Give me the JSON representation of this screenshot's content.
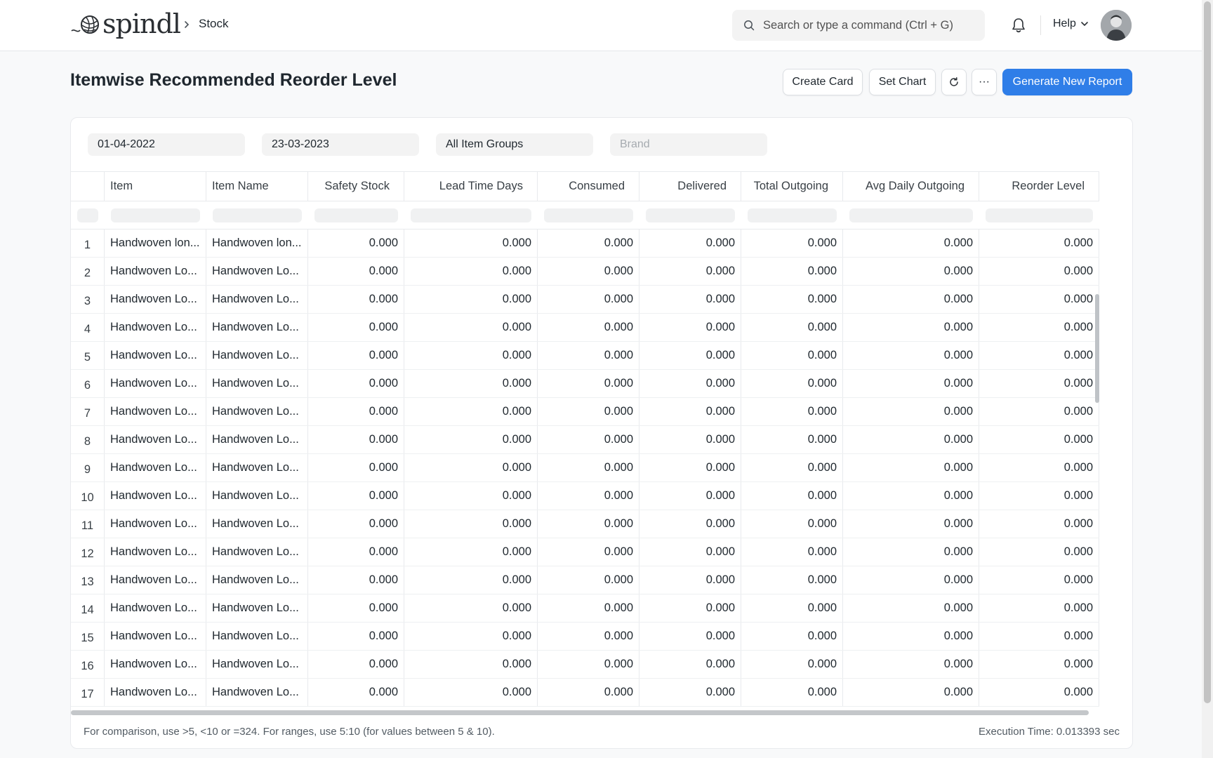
{
  "navbar": {
    "logo_text": "spindl",
    "breadcrumb": "Stock",
    "search_placeholder": "Search or type a command (Ctrl + G)",
    "help_label": "Help"
  },
  "page": {
    "title": "Itemwise Recommended Reorder Level",
    "buttons": {
      "create_card": "Create Card",
      "set_chart": "Set Chart",
      "more": "···",
      "generate_report": "Generate New Report"
    }
  },
  "filters": {
    "from_date": "01-04-2022",
    "to_date": "23-03-2023",
    "item_group": "All Item Groups",
    "brand_placeholder": "Brand"
  },
  "table": {
    "columns": [
      "Item",
      "Item Name",
      "Safety Stock",
      "Lead Time Days",
      "Consumed",
      "Delivered",
      "Total Outgoing",
      "Avg Daily Outgoing",
      "Reorder Level"
    ],
    "rows": [
      {
        "num": "1",
        "item": "Handwoven lon...",
        "item_name": "Handwoven lon...",
        "values": [
          "0.000",
          "0.000",
          "0.000",
          "0.000",
          "0.000",
          "0.000",
          "0.000"
        ]
      },
      {
        "num": "2",
        "item": "Handwoven Lo...",
        "item_name": "Handwoven Lo...",
        "values": [
          "0.000",
          "0.000",
          "0.000",
          "0.000",
          "0.000",
          "0.000",
          "0.000"
        ]
      },
      {
        "num": "3",
        "item": "Handwoven Lo...",
        "item_name": "Handwoven Lo...",
        "values": [
          "0.000",
          "0.000",
          "0.000",
          "0.000",
          "0.000",
          "0.000",
          "0.000"
        ]
      },
      {
        "num": "4",
        "item": "Handwoven Lo...",
        "item_name": "Handwoven Lo...",
        "values": [
          "0.000",
          "0.000",
          "0.000",
          "0.000",
          "0.000",
          "0.000",
          "0.000"
        ]
      },
      {
        "num": "5",
        "item": "Handwoven Lo...",
        "item_name": "Handwoven Lo...",
        "values": [
          "0.000",
          "0.000",
          "0.000",
          "0.000",
          "0.000",
          "0.000",
          "0.000"
        ]
      },
      {
        "num": "6",
        "item": "Handwoven Lo...",
        "item_name": "Handwoven Lo...",
        "values": [
          "0.000",
          "0.000",
          "0.000",
          "0.000",
          "0.000",
          "0.000",
          "0.000"
        ]
      },
      {
        "num": "7",
        "item": "Handwoven Lo...",
        "item_name": "Handwoven Lo...",
        "values": [
          "0.000",
          "0.000",
          "0.000",
          "0.000",
          "0.000",
          "0.000",
          "0.000"
        ]
      },
      {
        "num": "8",
        "item": "Handwoven Lo...",
        "item_name": "Handwoven Lo...",
        "values": [
          "0.000",
          "0.000",
          "0.000",
          "0.000",
          "0.000",
          "0.000",
          "0.000"
        ]
      },
      {
        "num": "9",
        "item": "Handwoven Lo...",
        "item_name": "Handwoven Lo...",
        "values": [
          "0.000",
          "0.000",
          "0.000",
          "0.000",
          "0.000",
          "0.000",
          "0.000"
        ]
      },
      {
        "num": "10",
        "item": "Handwoven Lo...",
        "item_name": "Handwoven Lo...",
        "values": [
          "0.000",
          "0.000",
          "0.000",
          "0.000",
          "0.000",
          "0.000",
          "0.000"
        ]
      },
      {
        "num": "11",
        "item": "Handwoven Lo...",
        "item_name": "Handwoven Lo...",
        "values": [
          "0.000",
          "0.000",
          "0.000",
          "0.000",
          "0.000",
          "0.000",
          "0.000"
        ]
      },
      {
        "num": "12",
        "item": "Handwoven Lo...",
        "item_name": "Handwoven Lo...",
        "values": [
          "0.000",
          "0.000",
          "0.000",
          "0.000",
          "0.000",
          "0.000",
          "0.000"
        ]
      },
      {
        "num": "13",
        "item": "Handwoven Lo...",
        "item_name": "Handwoven Lo...",
        "values": [
          "0.000",
          "0.000",
          "0.000",
          "0.000",
          "0.000",
          "0.000",
          "0.000"
        ]
      },
      {
        "num": "14",
        "item": "Handwoven Lo...",
        "item_name": "Handwoven Lo...",
        "values": [
          "0.000",
          "0.000",
          "0.000",
          "0.000",
          "0.000",
          "0.000",
          "0.000"
        ]
      },
      {
        "num": "15",
        "item": "Handwoven Lo...",
        "item_name": "Handwoven Lo...",
        "values": [
          "0.000",
          "0.000",
          "0.000",
          "0.000",
          "0.000",
          "0.000",
          "0.000"
        ]
      },
      {
        "num": "16",
        "item": "Handwoven Lo...",
        "item_name": "Handwoven Lo...",
        "values": [
          "0.000",
          "0.000",
          "0.000",
          "0.000",
          "0.000",
          "0.000",
          "0.000"
        ]
      },
      {
        "num": "17",
        "item": "Handwoven Lo...",
        "item_name": "Handwoven Lo...",
        "values": [
          "0.000",
          "0.000",
          "0.000",
          "0.000",
          "0.000",
          "0.000",
          "0.000"
        ]
      }
    ]
  },
  "footer": {
    "note": "For comparison, use >5, <10 or =324. For ranges, use 5:10 (for values between 5 & 10).",
    "execution_time": "Execution Time: 0.013393 sec"
  },
  "icons": {
    "logo": "yarn-ball-icon",
    "breadcrumb": "chevron-right-icon",
    "search": "search-icon",
    "notifications": "bell-icon",
    "help": "chevron-down-icon",
    "refresh": "refresh-icon"
  },
  "colors": {
    "primary": "#2f7ee8"
  }
}
